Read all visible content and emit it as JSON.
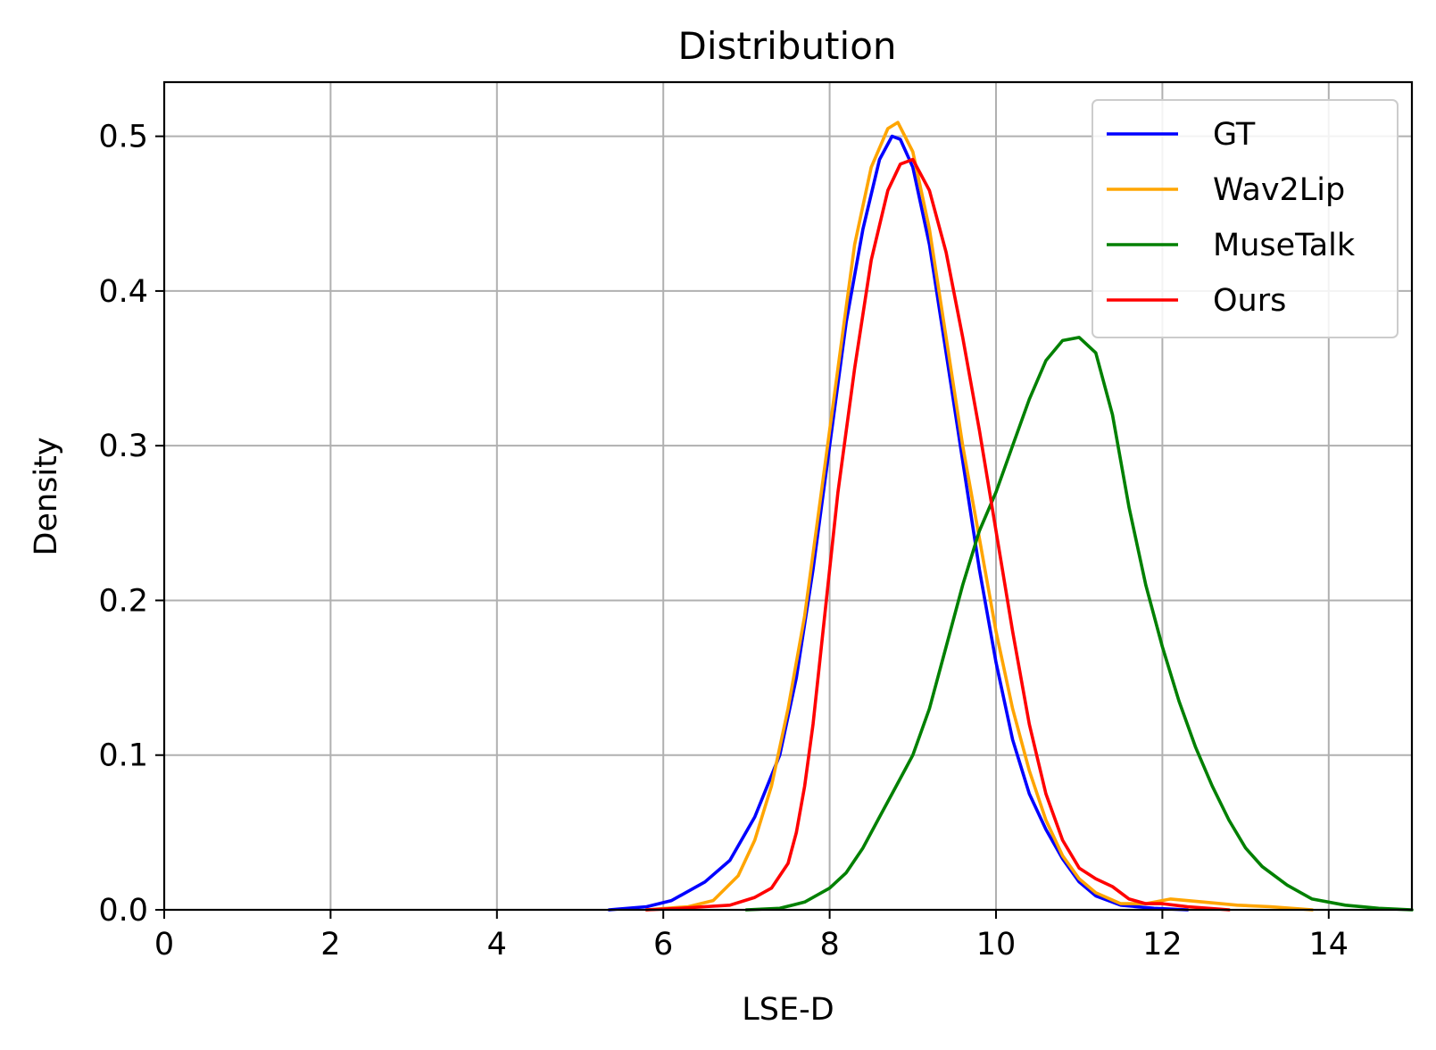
{
  "chart_data": {
    "type": "line",
    "title": "Distribution",
    "xlabel": "LSE-D",
    "ylabel": "Density",
    "xlim": [
      0,
      15
    ],
    "ylim": [
      0,
      0.535
    ],
    "xticks": [
      0,
      2,
      4,
      6,
      8,
      10,
      12,
      14
    ],
    "yticks": [
      0.0,
      0.1,
      0.2,
      0.3,
      0.4,
      0.5
    ],
    "ytick_labels": [
      "0.0",
      "0.1",
      "0.2",
      "0.3",
      "0.4",
      "0.5"
    ],
    "grid": true,
    "legend_position": "top-right",
    "series": [
      {
        "name": "GT",
        "color": "#0000ff",
        "points": [
          [
            5.35,
            0.0
          ],
          [
            5.8,
            0.002
          ],
          [
            6.1,
            0.006
          ],
          [
            6.5,
            0.018
          ],
          [
            6.8,
            0.032
          ],
          [
            7.1,
            0.06
          ],
          [
            7.4,
            0.1
          ],
          [
            7.6,
            0.15
          ],
          [
            7.8,
            0.22
          ],
          [
            8.0,
            0.3
          ],
          [
            8.2,
            0.38
          ],
          [
            8.4,
            0.44
          ],
          [
            8.6,
            0.485
          ],
          [
            8.75,
            0.5
          ],
          [
            8.85,
            0.498
          ],
          [
            9.0,
            0.48
          ],
          [
            9.2,
            0.43
          ],
          [
            9.4,
            0.36
          ],
          [
            9.6,
            0.29
          ],
          [
            9.8,
            0.22
          ],
          [
            10.0,
            0.16
          ],
          [
            10.2,
            0.11
          ],
          [
            10.4,
            0.075
          ],
          [
            10.6,
            0.052
          ],
          [
            10.8,
            0.033
          ],
          [
            11.0,
            0.018
          ],
          [
            11.2,
            0.009
          ],
          [
            11.5,
            0.003
          ],
          [
            11.9,
            0.001
          ],
          [
            12.3,
            0.0
          ]
        ]
      },
      {
        "name": "Wav2Lip",
        "color": "#ffa500",
        "points": [
          [
            5.8,
            0.0
          ],
          [
            6.3,
            0.002
          ],
          [
            6.6,
            0.006
          ],
          [
            6.9,
            0.022
          ],
          [
            7.1,
            0.045
          ],
          [
            7.3,
            0.08
          ],
          [
            7.5,
            0.13
          ],
          [
            7.7,
            0.19
          ],
          [
            7.9,
            0.27
          ],
          [
            8.1,
            0.35
          ],
          [
            8.3,
            0.43
          ],
          [
            8.5,
            0.48
          ],
          [
            8.7,
            0.505
          ],
          [
            8.82,
            0.509
          ],
          [
            9.0,
            0.49
          ],
          [
            9.2,
            0.44
          ],
          [
            9.4,
            0.37
          ],
          [
            9.6,
            0.3
          ],
          [
            9.8,
            0.24
          ],
          [
            10.0,
            0.18
          ],
          [
            10.2,
            0.13
          ],
          [
            10.4,
            0.09
          ],
          [
            10.6,
            0.058
          ],
          [
            10.8,
            0.035
          ],
          [
            11.0,
            0.02
          ],
          [
            11.2,
            0.011
          ],
          [
            11.5,
            0.004
          ],
          [
            11.8,
            0.004
          ],
          [
            12.1,
            0.007
          ],
          [
            12.5,
            0.005
          ],
          [
            12.9,
            0.003
          ],
          [
            13.3,
            0.002
          ],
          [
            13.8,
            0.0
          ]
        ]
      },
      {
        "name": "MuseTalk",
        "color": "#008000",
        "points": [
          [
            7.0,
            0.0
          ],
          [
            7.4,
            0.001
          ],
          [
            7.7,
            0.005
          ],
          [
            8.0,
            0.014
          ],
          [
            8.2,
            0.024
          ],
          [
            8.4,
            0.04
          ],
          [
            8.6,
            0.06
          ],
          [
            8.8,
            0.08
          ],
          [
            9.0,
            0.1
          ],
          [
            9.2,
            0.13
          ],
          [
            9.4,
            0.17
          ],
          [
            9.6,
            0.21
          ],
          [
            9.8,
            0.245
          ],
          [
            10.0,
            0.27
          ],
          [
            10.2,
            0.3
          ],
          [
            10.4,
            0.33
          ],
          [
            10.6,
            0.355
          ],
          [
            10.8,
            0.368
          ],
          [
            11.0,
            0.37
          ],
          [
            11.2,
            0.36
          ],
          [
            11.4,
            0.32
          ],
          [
            11.6,
            0.26
          ],
          [
            11.8,
            0.21
          ],
          [
            12.0,
            0.17
          ],
          [
            12.2,
            0.135
          ],
          [
            12.4,
            0.105
          ],
          [
            12.6,
            0.08
          ],
          [
            12.8,
            0.058
          ],
          [
            13.0,
            0.04
          ],
          [
            13.2,
            0.028
          ],
          [
            13.5,
            0.016
          ],
          [
            13.8,
            0.007
          ],
          [
            14.2,
            0.003
          ],
          [
            14.6,
            0.001
          ],
          [
            15.0,
            0.0
          ]
        ]
      },
      {
        "name": "Ours",
        "color": "#ff0000",
        "points": [
          [
            5.8,
            0.0
          ],
          [
            6.2,
            0.001
          ],
          [
            6.5,
            0.002
          ],
          [
            6.8,
            0.003
          ],
          [
            7.1,
            0.008
          ],
          [
            7.3,
            0.014
          ],
          [
            7.5,
            0.03
          ],
          [
            7.6,
            0.05
          ],
          [
            7.7,
            0.08
          ],
          [
            7.8,
            0.12
          ],
          [
            7.9,
            0.17
          ],
          [
            8.0,
            0.22
          ],
          [
            8.1,
            0.27
          ],
          [
            8.3,
            0.35
          ],
          [
            8.5,
            0.42
          ],
          [
            8.7,
            0.465
          ],
          [
            8.85,
            0.482
          ],
          [
            9.0,
            0.485
          ],
          [
            9.2,
            0.465
          ],
          [
            9.4,
            0.425
          ],
          [
            9.6,
            0.37
          ],
          [
            9.8,
            0.31
          ],
          [
            10.0,
            0.245
          ],
          [
            10.2,
            0.18
          ],
          [
            10.4,
            0.12
          ],
          [
            10.6,
            0.075
          ],
          [
            10.8,
            0.045
          ],
          [
            11.0,
            0.027
          ],
          [
            11.2,
            0.02
          ],
          [
            11.4,
            0.015
          ],
          [
            11.6,
            0.007
          ],
          [
            11.8,
            0.004
          ],
          [
            12.0,
            0.004
          ],
          [
            12.3,
            0.002
          ],
          [
            12.8,
            0.0
          ]
        ]
      }
    ]
  }
}
